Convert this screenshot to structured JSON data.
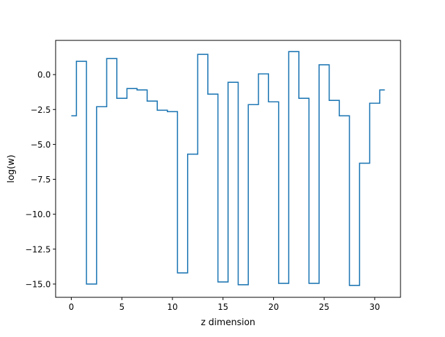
{
  "chart_data": {
    "type": "line",
    "drawstyle": "steps-mid",
    "xlabel": "z dimension",
    "ylabel": "log(w)",
    "xlim": [
      -1.55,
      32.55
    ],
    "ylim": [
      -15.95,
      2.45
    ],
    "xticks": [
      0,
      5,
      10,
      15,
      20,
      25,
      30
    ],
    "xtick_labels": [
      "0",
      "5",
      "10",
      "15",
      "20",
      "25",
      "30"
    ],
    "yticks": [
      0.0,
      -2.5,
      -5.0,
      -7.5,
      -10.0,
      -12.5,
      -15.0
    ],
    "ytick_labels": [
      "0.0",
      "−2.5",
      "−5.0",
      "−7.5",
      "−10.0",
      "−12.5",
      "−15.0"
    ],
    "grid": false,
    "series": [
      {
        "color": "#1f77b4",
        "x": [
          0,
          1,
          2,
          3,
          4,
          5,
          6,
          7,
          8,
          9,
          10,
          11,
          12,
          13,
          14,
          15,
          16,
          17,
          18,
          19,
          20,
          21,
          22,
          23,
          24,
          25,
          26,
          27,
          28,
          29,
          30,
          31
        ],
        "values": [
          -2.95,
          0.95,
          -15.0,
          -2.3,
          1.15,
          -1.7,
          -1.0,
          -1.1,
          -1.9,
          -2.55,
          -2.65,
          -14.2,
          -5.7,
          1.45,
          -1.4,
          -14.85,
          -0.55,
          -15.05,
          -2.15,
          0.05,
          -1.95,
          -14.95,
          1.65,
          -1.7,
          -14.95,
          0.7,
          -1.85,
          -2.95,
          -15.1,
          -6.35,
          -2.05,
          -1.1
        ]
      }
    ]
  }
}
